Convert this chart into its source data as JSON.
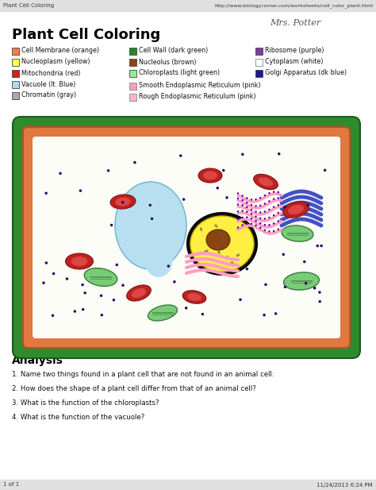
{
  "title": "Plant Cell Coloring",
  "header_left": "Plant Cell Coloring",
  "header_right": "http://www.biologycorner.com/worksheets/cell_color_plant.html",
  "signature": "Mrs. Potter",
  "legend_col1": [
    {
      "label": "Cell Membrane (orange)",
      "color": "#E8834A"
    },
    {
      "label": "Nucleoplasm (yellow)",
      "color": "#FFFF55"
    },
    {
      "label": "Mitochondria (red)",
      "color": "#CC2222"
    },
    {
      "label": "Vacuole (lt. Blue)",
      "color": "#AADDEE"
    },
    {
      "label": "Chromatin (gray)",
      "color": "#AAAAAA"
    }
  ],
  "legend_col2_top": [
    {
      "label": "Cell Wall (dark green)",
      "color": "#228B22"
    },
    {
      "label": "Nucleolus (brown)",
      "color": "#8B4513"
    },
    {
      "label": "Chloroplasts (light green)",
      "color": "#90EE90"
    }
  ],
  "legend_col2_bot": [
    {
      "label": "Smooth Endoplasmic Reticulum (pink)",
      "color": "#FF9EB5"
    },
    {
      "label": "Rough Endoplasmic Reticulum (pink)",
      "color": "#FFB6C1"
    }
  ],
  "legend_col3": [
    {
      "label": "Ribosome (purple)",
      "color": "#7B3FA0"
    },
    {
      "label": "Cytoplasm (white)",
      "color": "#FFFFFF"
    },
    {
      "label": "Golgi Apparatus (dk blue)",
      "color": "#1A1A8C"
    }
  ],
  "analysis_title": "Analysis",
  "questions": [
    "1. Name two things found in a plant cell that are not found in an animal cell:",
    "2. How does the shape of a plant cell differ from that of an animal cell?",
    "3. What is the function of the chloroplasts?",
    "4. What is the function of the vacuole?"
  ],
  "footer_left": "1 of 1",
  "footer_right": "11/24/2013 6:24 PM",
  "bg_color": "#FFFFFF"
}
